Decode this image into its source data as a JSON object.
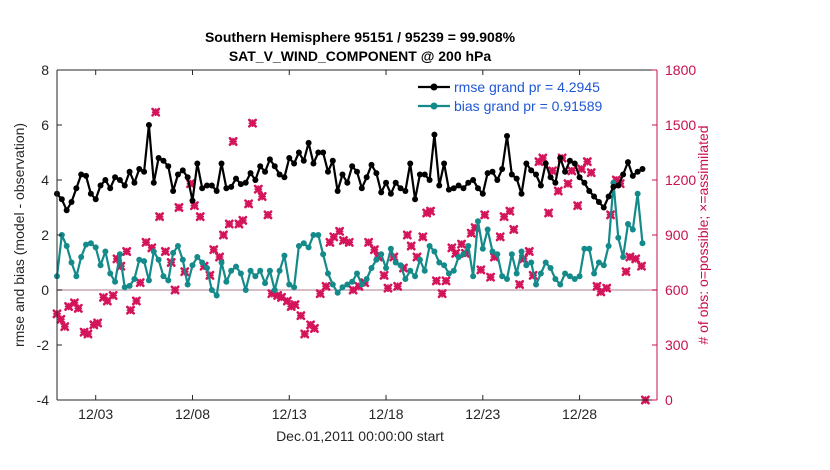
{
  "chart_data": {
    "type": "line",
    "title": [
      "Southern Hemisphere 95151 / 95239 = 99.908%",
      "SAT_V_WIND_COMPONENT @ 200 hPa"
    ],
    "xlabel": "Dec.01,2011 00:00:00 start",
    "ylabel": "rmse and bias (model - observation)",
    "ylabel_right": "# of obs: o=possible; ×=assimilated",
    "xlim": [
      1,
      32
    ],
    "ylim": [
      -4,
      8
    ],
    "ylim_right": [
      0,
      1800
    ],
    "x_ticks": [
      3,
      8,
      13,
      18,
      23,
      28
    ],
    "x_tick_labels": [
      "12/03",
      "12/08",
      "12/13",
      "12/18",
      "12/23",
      "12/28"
    ],
    "y_ticks": [
      -4,
      -2,
      0,
      2,
      4,
      6,
      8
    ],
    "y_ticks_right": [
      0,
      300,
      600,
      900,
      1200,
      1500,
      1800
    ],
    "grid": false,
    "legend_position": "top-right",
    "zero_line": true,
    "x": [
      1.0,
      1.25,
      1.5,
      1.75,
      2.0,
      2.25,
      2.5,
      2.75,
      3.0,
      3.25,
      3.5,
      3.75,
      4.0,
      4.25,
      4.5,
      4.75,
      5.0,
      5.25,
      5.5,
      5.75,
      6.0,
      6.25,
      6.5,
      6.75,
      7.0,
      7.25,
      7.5,
      7.75,
      8.0,
      8.25,
      8.5,
      8.75,
      9.0,
      9.25,
      9.5,
      9.75,
      10.0,
      10.25,
      10.5,
      10.75,
      11.0,
      11.25,
      11.5,
      11.75,
      12.0,
      12.25,
      12.5,
      12.75,
      13.0,
      13.25,
      13.5,
      13.75,
      14.0,
      14.25,
      14.5,
      14.75,
      15.0,
      15.25,
      15.5,
      15.75,
      16.0,
      16.25,
      16.5,
      16.75,
      17.0,
      17.25,
      17.5,
      17.75,
      18.0,
      18.25,
      18.5,
      18.75,
      19.0,
      19.25,
      19.5,
      19.75,
      20.0,
      20.25,
      20.5,
      20.75,
      21.0,
      21.25,
      21.5,
      21.75,
      22.0,
      22.25,
      22.5,
      22.75,
      23.0,
      23.25,
      23.5,
      23.75,
      24.0,
      24.25,
      24.5,
      24.75,
      25.0,
      25.25,
      25.5,
      25.75,
      26.0,
      26.25,
      26.5,
      26.75,
      27.0,
      27.25,
      27.5,
      27.75,
      28.0,
      28.25,
      28.5,
      28.75,
      29.0,
      29.25,
      29.5,
      29.75,
      30.0,
      30.25,
      30.5,
      30.75,
      31.0,
      31.25
    ],
    "series": [
      {
        "name": "rmse grand pr = 4.2945",
        "axis": "left",
        "color": "#000000",
        "marker": "filled-circle",
        "values": [
          3.5,
          3.3,
          2.9,
          3.2,
          3.7,
          4.2,
          4.15,
          3.5,
          3.3,
          3.8,
          4.0,
          3.7,
          4.1,
          4.0,
          3.8,
          4.3,
          3.9,
          4.4,
          4.3,
          6.0,
          3.9,
          4.8,
          4.7,
          4.5,
          3.6,
          4.2,
          4.35,
          4.1,
          3.25,
          4.6,
          3.7,
          3.8,
          3.8,
          3.6,
          4.6,
          3.7,
          3.75,
          4.05,
          3.85,
          3.9,
          4.25,
          4.0,
          4.5,
          4.3,
          4.75,
          4.5,
          4.2,
          4.1,
          4.8,
          4.6,
          5.0,
          4.7,
          5.35,
          4.6,
          5.0,
          5.0,
          4.3,
          4.7,
          3.6,
          4.2,
          3.9,
          4.5,
          4.3,
          3.7,
          4.1,
          4.55,
          4.25,
          3.55,
          3.9,
          3.5,
          3.9,
          3.7,
          3.6,
          4.6,
          3.3,
          4.2,
          4.2,
          4.0,
          5.65,
          3.8,
          4.6,
          3.65,
          3.7,
          3.8,
          3.7,
          3.9,
          4.0,
          3.7,
          3.5,
          4.25,
          4.3,
          4.0,
          4.4,
          5.6,
          4.2,
          4.05,
          3.5,
          4.6,
          4.35,
          4.2,
          3.8,
          4.6,
          4.1,
          3.9,
          4.8,
          4.3,
          4.7,
          4.6,
          4.1,
          3.9,
          3.6,
          3.4,
          3.2,
          3.0,
          3.4,
          3.75,
          3.8,
          4.2,
          4.65,
          4.15,
          4.3,
          4.4
        ]
      },
      {
        "name": "bias grand pr = 0.91589",
        "axis": "left",
        "color": "#148a8a",
        "marker": "filled-circle",
        "values": [
          0.5,
          2.0,
          1.6,
          1.0,
          0.5,
          1.2,
          1.65,
          1.7,
          1.55,
          0.9,
          1.4,
          0.6,
          0.3,
          1.3,
          0.1,
          0.15,
          0.4,
          1.1,
          1.05,
          0.35,
          1.4,
          1.1,
          0.5,
          0.35,
          1.35,
          1.6,
          1.1,
          0.2,
          0.9,
          1.2,
          1.0,
          0.8,
          0.0,
          -0.2,
          1.0,
          0.3,
          0.7,
          0.85,
          0.6,
          0.0,
          0.7,
          0.5,
          0.7,
          0.25,
          0.7,
          0.0,
          0.7,
          1.25,
          0.2,
          0.1,
          1.6,
          1.7,
          1.55,
          2.0,
          2.0,
          1.3,
          0.6,
          0.2,
          -0.1,
          0.1,
          0.2,
          0.3,
          0.6,
          0.2,
          0.4,
          0.8,
          1.1,
          1.3,
          0.8,
          1.5,
          1.0,
          0.9,
          0.4,
          0.7,
          0.5,
          1.1,
          0.7,
          1.6,
          1.4,
          1.0,
          0.9,
          0.6,
          0.7,
          1.2,
          1.3,
          1.6,
          0.5,
          2.5,
          1.5,
          2.2,
          1.4,
          1.3,
          0.5,
          0.4,
          1.3,
          0.6,
          1.4,
          0.9,
          1.0,
          0.2,
          0.6,
          1.0,
          0.8,
          0.4,
          0.2,
          0.6,
          0.5,
          0.4,
          0.5,
          1.5,
          1.5,
          0.6,
          1.0,
          0.9,
          1.6,
          3.9,
          1.9,
          1.2,
          2.4,
          2.2,
          3.5,
          1.7
        ]
      }
    ],
    "obs_assimilated": {
      "axis": "right",
      "color": "#d4145a",
      "marker": "x",
      "points": [
        [
          1.0,
          470
        ],
        [
          1.2,
          440
        ],
        [
          1.4,
          400
        ],
        [
          1.6,
          510
        ],
        [
          1.9,
          530
        ],
        [
          2.1,
          500
        ],
        [
          2.4,
          370
        ],
        [
          2.6,
          360
        ],
        [
          2.9,
          410
        ],
        [
          3.1,
          420
        ],
        [
          3.4,
          560
        ],
        [
          3.6,
          540
        ],
        [
          3.9,
          570
        ],
        [
          4.1,
          770
        ],
        [
          4.3,
          730
        ],
        [
          4.6,
          810
        ],
        [
          4.8,
          490
        ],
        [
          5.1,
          540
        ],
        [
          5.3,
          640
        ],
        [
          5.6,
          860
        ],
        [
          5.9,
          830
        ],
        [
          6.1,
          1570
        ],
        [
          6.3,
          1000
        ],
        [
          6.6,
          810
        ],
        [
          6.9,
          750
        ],
        [
          7.1,
          600
        ],
        [
          7.3,
          1050
        ],
        [
          7.6,
          700
        ],
        [
          7.9,
          1180
        ],
        [
          8.1,
          1060
        ],
        [
          8.4,
          1000
        ],
        [
          8.6,
          730
        ],
        [
          8.9,
          680
        ],
        [
          9.1,
          820
        ],
        [
          9.4,
          780
        ],
        [
          9.6,
          900
        ],
        [
          9.9,
          960
        ],
        [
          10.1,
          1410
        ],
        [
          10.4,
          960
        ],
        [
          10.6,
          980
        ],
        [
          10.9,
          1070
        ],
        [
          11.1,
          1510
        ],
        [
          11.4,
          1150
        ],
        [
          11.6,
          1110
        ],
        [
          11.9,
          1010
        ],
        [
          12.1,
          580
        ],
        [
          12.4,
          570
        ],
        [
          12.6,
          560
        ],
        [
          12.9,
          540
        ],
        [
          13.1,
          510
        ],
        [
          13.3,
          520
        ],
        [
          13.6,
          460
        ],
        [
          13.8,
          360
        ],
        [
          14.1,
          410
        ],
        [
          14.3,
          390
        ],
        [
          14.6,
          580
        ],
        [
          14.9,
          620
        ],
        [
          15.1,
          860
        ],
        [
          15.3,
          890
        ],
        [
          15.6,
          920
        ],
        [
          15.8,
          870
        ],
        [
          16.1,
          860
        ],
        [
          16.3,
          600
        ],
        [
          16.6,
          620
        ],
        [
          16.9,
          640
        ],
        [
          17.1,
          860
        ],
        [
          17.4,
          820
        ],
        [
          17.6,
          780
        ],
        [
          17.9,
          680
        ],
        [
          18.1,
          610
        ],
        [
          18.4,
          780
        ],
        [
          18.6,
          620
        ],
        [
          18.9,
          720
        ],
        [
          19.1,
          900
        ],
        [
          19.3,
          840
        ],
        [
          19.6,
          780
        ],
        [
          19.9,
          890
        ],
        [
          20.1,
          1020
        ],
        [
          20.3,
          1030
        ],
        [
          20.6,
          650
        ],
        [
          20.9,
          580
        ],
        [
          21.1,
          650
        ],
        [
          21.4,
          830
        ],
        [
          21.6,
          800
        ],
        [
          21.9,
          850
        ],
        [
          22.1,
          800
        ],
        [
          22.4,
          910
        ],
        [
          22.6,
          940
        ],
        [
          22.9,
          710
        ],
        [
          23.1,
          1010
        ],
        [
          23.4,
          670
        ],
        [
          23.6,
          780
        ],
        [
          23.9,
          890
        ],
        [
          24.1,
          1000
        ],
        [
          24.4,
          1030
        ],
        [
          24.6,
          930
        ],
        [
          24.9,
          630
        ],
        [
          25.1,
          770
        ],
        [
          25.4,
          810
        ],
        [
          25.6,
          680
        ],
        [
          25.9,
          1300
        ],
        [
          26.1,
          1320
        ],
        [
          26.4,
          1020
        ],
        [
          26.6,
          1250
        ],
        [
          26.9,
          1140
        ],
        [
          27.1,
          1320
        ],
        [
          27.4,
          1180
        ],
        [
          27.6,
          1250
        ],
        [
          27.9,
          1060
        ],
        [
          28.1,
          1260
        ],
        [
          28.4,
          1300
        ],
        [
          28.6,
          1240
        ],
        [
          28.9,
          620
        ],
        [
          29.1,
          590
        ],
        [
          29.4,
          610
        ],
        [
          29.6,
          1010
        ],
        [
          29.9,
          1200
        ],
        [
          30.1,
          1180
        ],
        [
          30.4,
          700
        ],
        [
          30.6,
          780
        ],
        [
          30.9,
          770
        ],
        [
          31.2,
          730
        ],
        [
          31.4,
          0
        ]
      ]
    }
  }
}
